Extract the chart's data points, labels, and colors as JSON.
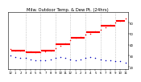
{
  "title": "Milw. Outdoor Temp. & Dew Pt. (24hrs)",
  "background_color": "#ffffff",
  "plot_bg": "#ffffff",
  "temp_color": "#ff0000",
  "dew_color": "#0000bb",
  "grid_color": "#999999",
  "title_fontsize": 3.8,
  "tick_fontsize": 2.8,
  "hours": [
    0,
    1,
    2,
    3,
    4,
    5,
    6,
    7,
    8,
    9,
    10,
    11,
    12,
    13,
    14,
    15,
    16,
    17,
    18,
    19,
    20,
    21,
    22,
    23
  ],
  "temp": [
    36,
    35,
    35,
    34,
    34,
    33,
    33,
    34,
    35,
    37,
    39,
    41,
    44,
    46,
    47,
    49,
    50,
    52,
    54,
    56,
    58,
    60,
    62,
    64
  ],
  "dew": [
    30,
    29,
    28,
    28,
    27,
    26,
    26,
    26,
    27,
    28,
    29,
    28,
    27,
    26,
    27,
    28,
    29,
    28,
    27,
    26,
    26,
    25,
    25,
    24
  ],
  "ylim": [
    18,
    70
  ],
  "xlim": [
    -0.5,
    23.5
  ],
  "yticks": [
    20,
    30,
    40,
    50,
    60
  ],
  "xticks": [
    0,
    1,
    2,
    3,
    4,
    5,
    6,
    7,
    8,
    9,
    10,
    11,
    12,
    13,
    14,
    15,
    16,
    17,
    18,
    19,
    20,
    21,
    22,
    23
  ],
  "xticklabels": [
    "12",
    "1",
    "2",
    "3",
    "4",
    "5",
    "6",
    "7",
    "8",
    "9",
    "10",
    "11",
    "12",
    "1",
    "2",
    "3",
    "4",
    "5",
    "6",
    "7",
    "8",
    "9",
    "10",
    "11"
  ],
  "vline_positions": [
    3,
    6,
    9,
    12,
    15,
    18,
    21
  ],
  "seg_boundaries": [
    0,
    3,
    6,
    9,
    12,
    15,
    18,
    21,
    23
  ]
}
